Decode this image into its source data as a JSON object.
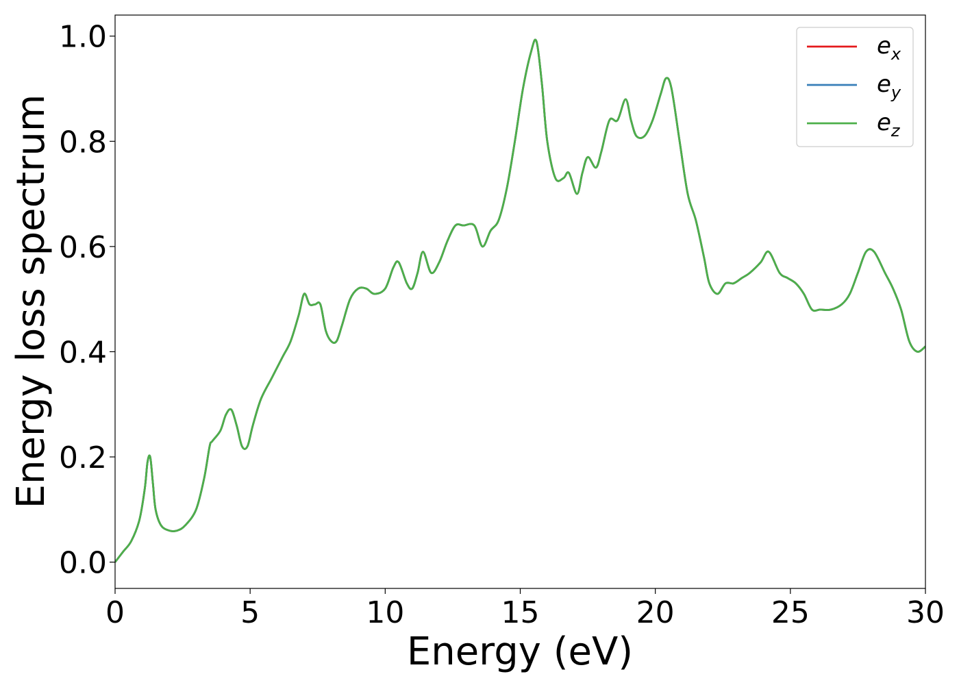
{
  "chart_data": {
    "type": "line",
    "title": "",
    "xlabel": "Energy (eV)",
    "ylabel": "Energy loss spectrum",
    "xlim": [
      0,
      30
    ],
    "ylim": [
      -0.05,
      1.04
    ],
    "xticks": [
      0,
      5,
      10,
      15,
      20,
      25,
      30
    ],
    "xtick_labels": [
      "0",
      "5",
      "10",
      "15",
      "20",
      "25",
      "30"
    ],
    "yticks": [
      0.0,
      0.2,
      0.4,
      0.6,
      0.8,
      1.0
    ],
    "ytick_labels": [
      "0.0",
      "0.2",
      "0.4",
      "0.6",
      "0.8",
      "1.0"
    ],
    "grid": false,
    "legend_position": "top-right",
    "x": [
      0,
      0.3,
      0.6,
      0.9,
      1.1,
      1.2,
      1.3,
      1.4,
      1.5,
      1.7,
      2.0,
      2.3,
      2.6,
      3.0,
      3.3,
      3.5,
      3.6,
      3.9,
      4.1,
      4.3,
      4.5,
      4.7,
      4.9,
      5.1,
      5.4,
      5.8,
      6.2,
      6.5,
      6.8,
      7.0,
      7.2,
      7.4,
      7.6,
      7.8,
      8.0,
      8.2,
      8.4,
      8.7,
      9.0,
      9.3,
      9.6,
      10.0,
      10.3,
      10.5,
      10.8,
      11.0,
      11.2,
      11.4,
      11.7,
      12.0,
      12.3,
      12.6,
      12.9,
      13.3,
      13.6,
      13.9,
      14.2,
      14.5,
      14.8,
      15.1,
      15.4,
      15.6,
      15.8,
      16.0,
      16.3,
      16.6,
      16.8,
      17.1,
      17.3,
      17.5,
      17.8,
      18.0,
      18.3,
      18.6,
      18.9,
      19.1,
      19.3,
      19.6,
      19.9,
      20.2,
      20.4,
      20.6,
      20.9,
      21.2,
      21.5,
      21.8,
      22.0,
      22.3,
      22.6,
      22.9,
      23.2,
      23.5,
      23.9,
      24.2,
      24.6,
      24.9,
      25.2,
      25.5,
      25.8,
      26.1,
      26.5,
      26.9,
      27.2,
      27.5,
      27.8,
      28.1,
      28.5,
      28.8,
      29.1,
      29.4,
      29.7,
      30.0
    ],
    "series": [
      {
        "name": "e_x",
        "label_base": "e",
        "label_sub": "x",
        "color": "#e41a1c",
        "values": [
          0.0,
          0.02,
          0.04,
          0.08,
          0.14,
          0.19,
          0.2,
          0.15,
          0.1,
          0.07,
          0.06,
          0.06,
          0.07,
          0.1,
          0.16,
          0.22,
          0.23,
          0.25,
          0.28,
          0.29,
          0.26,
          0.22,
          0.22,
          0.26,
          0.31,
          0.35,
          0.39,
          0.42,
          0.47,
          0.51,
          0.49,
          0.49,
          0.49,
          0.44,
          0.42,
          0.42,
          0.45,
          0.5,
          0.52,
          0.52,
          0.51,
          0.52,
          0.56,
          0.57,
          0.53,
          0.52,
          0.55,
          0.59,
          0.55,
          0.57,
          0.61,
          0.64,
          0.64,
          0.64,
          0.6,
          0.63,
          0.65,
          0.71,
          0.8,
          0.9,
          0.97,
          0.99,
          0.91,
          0.8,
          0.73,
          0.73,
          0.74,
          0.7,
          0.74,
          0.77,
          0.75,
          0.78,
          0.84,
          0.84,
          0.88,
          0.84,
          0.81,
          0.81,
          0.84,
          0.89,
          0.92,
          0.9,
          0.8,
          0.7,
          0.65,
          0.58,
          0.53,
          0.51,
          0.53,
          0.53,
          0.54,
          0.55,
          0.57,
          0.59,
          0.55,
          0.54,
          0.53,
          0.51,
          0.48,
          0.48,
          0.48,
          0.49,
          0.51,
          0.55,
          0.59,
          0.59,
          0.55,
          0.52,
          0.48,
          0.42,
          0.4,
          0.41
        ]
      },
      {
        "name": "e_y",
        "label_base": "e",
        "label_sub": "y",
        "color": "#377eb8",
        "values": [
          0.0,
          0.02,
          0.04,
          0.08,
          0.14,
          0.19,
          0.2,
          0.15,
          0.1,
          0.07,
          0.06,
          0.06,
          0.07,
          0.1,
          0.16,
          0.22,
          0.23,
          0.25,
          0.28,
          0.29,
          0.26,
          0.22,
          0.22,
          0.26,
          0.31,
          0.35,
          0.39,
          0.42,
          0.47,
          0.51,
          0.49,
          0.49,
          0.49,
          0.44,
          0.42,
          0.42,
          0.45,
          0.5,
          0.52,
          0.52,
          0.51,
          0.52,
          0.56,
          0.57,
          0.53,
          0.52,
          0.55,
          0.59,
          0.55,
          0.57,
          0.61,
          0.64,
          0.64,
          0.64,
          0.6,
          0.63,
          0.65,
          0.71,
          0.8,
          0.9,
          0.97,
          0.99,
          0.91,
          0.8,
          0.73,
          0.73,
          0.74,
          0.7,
          0.74,
          0.77,
          0.75,
          0.78,
          0.84,
          0.84,
          0.88,
          0.84,
          0.81,
          0.81,
          0.84,
          0.89,
          0.92,
          0.9,
          0.8,
          0.7,
          0.65,
          0.58,
          0.53,
          0.51,
          0.53,
          0.53,
          0.54,
          0.55,
          0.57,
          0.59,
          0.55,
          0.54,
          0.53,
          0.51,
          0.48,
          0.48,
          0.48,
          0.49,
          0.51,
          0.55,
          0.59,
          0.59,
          0.55,
          0.52,
          0.48,
          0.42,
          0.4,
          0.41
        ]
      },
      {
        "name": "e_z",
        "label_base": "e",
        "label_sub": "z",
        "color": "#4daf4a",
        "values": [
          0.0,
          0.02,
          0.04,
          0.08,
          0.14,
          0.19,
          0.2,
          0.15,
          0.1,
          0.07,
          0.06,
          0.06,
          0.07,
          0.1,
          0.16,
          0.22,
          0.23,
          0.25,
          0.28,
          0.29,
          0.26,
          0.22,
          0.22,
          0.26,
          0.31,
          0.35,
          0.39,
          0.42,
          0.47,
          0.51,
          0.49,
          0.49,
          0.49,
          0.44,
          0.42,
          0.42,
          0.45,
          0.5,
          0.52,
          0.52,
          0.51,
          0.52,
          0.56,
          0.57,
          0.53,
          0.52,
          0.55,
          0.59,
          0.55,
          0.57,
          0.61,
          0.64,
          0.64,
          0.64,
          0.6,
          0.63,
          0.65,
          0.71,
          0.8,
          0.9,
          0.97,
          0.99,
          0.91,
          0.8,
          0.73,
          0.73,
          0.74,
          0.7,
          0.74,
          0.77,
          0.75,
          0.78,
          0.84,
          0.84,
          0.88,
          0.84,
          0.81,
          0.81,
          0.84,
          0.89,
          0.92,
          0.9,
          0.8,
          0.7,
          0.65,
          0.58,
          0.53,
          0.51,
          0.53,
          0.53,
          0.54,
          0.55,
          0.57,
          0.59,
          0.55,
          0.54,
          0.53,
          0.51,
          0.48,
          0.48,
          0.48,
          0.49,
          0.51,
          0.55,
          0.59,
          0.59,
          0.55,
          0.52,
          0.48,
          0.42,
          0.4,
          0.41
        ]
      }
    ]
  }
}
